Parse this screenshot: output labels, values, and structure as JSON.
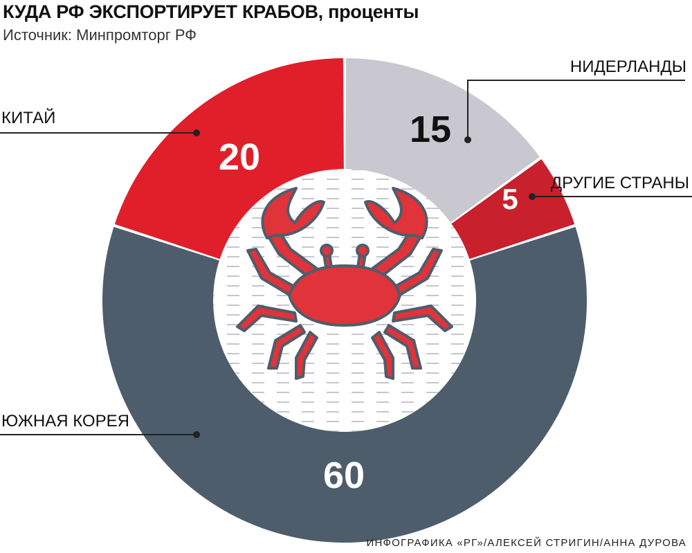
{
  "title": "КУДА РФ ЭКСПОРТИРУЕТ КРАБОВ, проценты",
  "source": "Источник: Минпромторг РФ",
  "credit": "ИНФОГРАФИКА «РГ»/АЛЕКСЕЙ СТРИГИН/АННА ДУРОВА",
  "chart_data": {
    "type": "pie",
    "variant": "donut",
    "slices": [
      {
        "label": "НИДЕРЛАНДЫ",
        "value": 15,
        "color": "#c9c8d0",
        "value_color": "#111111"
      },
      {
        "label": "ДРУГИЕ СТРАНЫ",
        "value": 5,
        "color": "#c8202c",
        "value_color": "#ffffff"
      },
      {
        "label": "ЮЖНАЯ КОРЕЯ",
        "value": 60,
        "color": "#4e5d6c",
        "value_color": "#ffffff"
      },
      {
        "label": "КИТАЙ",
        "value": 20,
        "color": "#e01f2b",
        "value_color": "#ffffff"
      }
    ],
    "center_icon": "crab-icon"
  }
}
